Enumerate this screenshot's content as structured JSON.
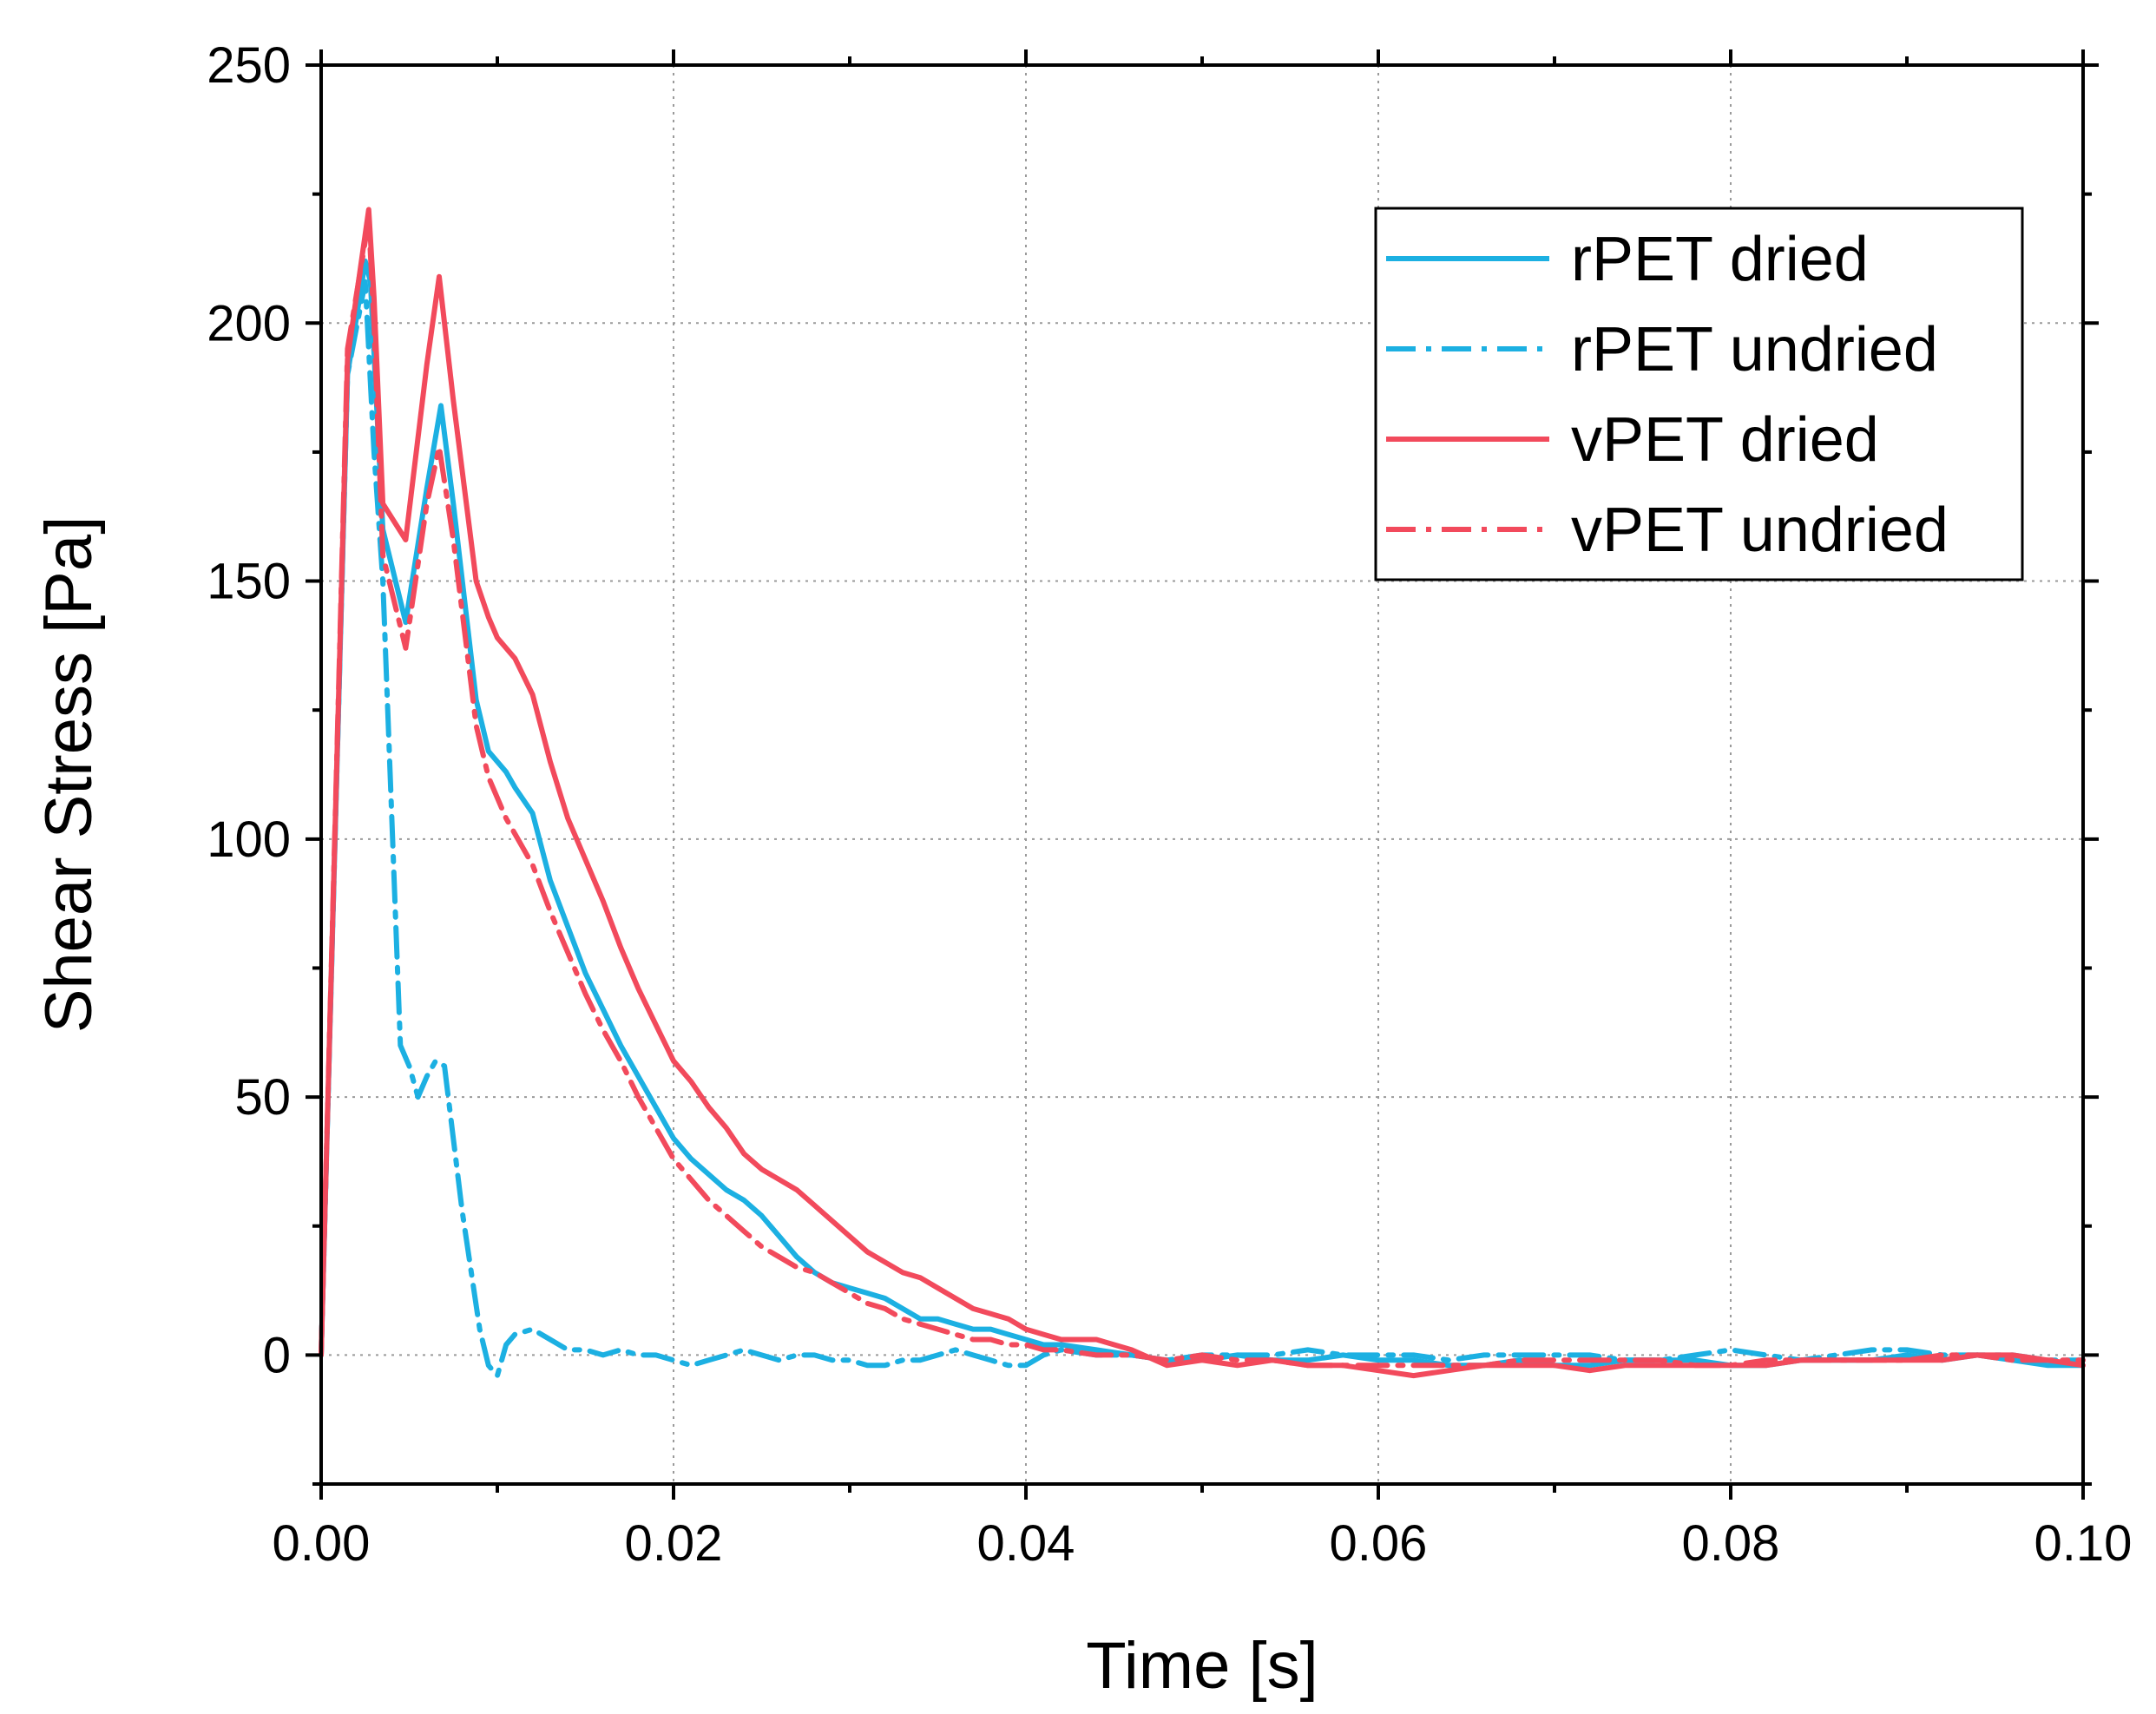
{
  "chart_data": {
    "type": "line",
    "title": "",
    "xlabel": "Time [s]",
    "ylabel": "Shear Stress [Pa]",
    "xlim": [
      0.0,
      0.1
    ],
    "ylim": [
      -25,
      250
    ],
    "xticks": [
      0.0,
      0.02,
      0.04,
      0.06,
      0.08,
      0.1
    ],
    "xtick_labels": [
      "0.00",
      "0.02",
      "0.04",
      "0.06",
      "0.08",
      "0.10"
    ],
    "yticks": [
      0,
      50,
      100,
      150,
      200,
      250
    ],
    "ytick_labels": [
      "0",
      "50",
      "100",
      "150",
      "200",
      "250"
    ],
    "grid": true,
    "legend_position": "top-right",
    "series": [
      {
        "name": "rPET dried",
        "color": "#1CB0E2",
        "style": "solid",
        "x": [
          0,
          0.0015,
          0.0025,
          0.0028,
          0.0035,
          0.0048,
          0.006,
          0.0068,
          0.0075,
          0.0088,
          0.0095,
          0.0105,
          0.011,
          0.012,
          0.013,
          0.014,
          0.015,
          0.016,
          0.017,
          0.018,
          0.019,
          0.02,
          0.021,
          0.022,
          0.023,
          0.024,
          0.025,
          0.026,
          0.027,
          0.028,
          0.029,
          0.03,
          0.031,
          0.032,
          0.033,
          0.034,
          0.035,
          0.036,
          0.037,
          0.038,
          0.039,
          0.04,
          0.041,
          0.042,
          0.044,
          0.046,
          0.048,
          0.05,
          0.052,
          0.054,
          0.056,
          0.058,
          0.06,
          0.062,
          0.064,
          0.066,
          0.068,
          0.07,
          0.072,
          0.074,
          0.076,
          0.078,
          0.08,
          0.082,
          0.084,
          0.086,
          0.088,
          0.09,
          0.092,
          0.094,
          0.096,
          0.098,
          0.1
        ],
        "y": [
          0,
          190,
          212,
          208,
          160,
          142,
          168,
          184,
          165,
          127,
          117,
          113,
          110,
          105,
          92,
          83,
          74,
          67,
          60,
          54,
          48,
          42,
          38,
          35,
          32,
          30,
          27,
          23,
          19,
          16,
          14,
          13,
          12,
          11,
          9,
          7,
          7,
          6,
          5,
          5,
          4,
          3,
          2,
          2,
          1,
          0,
          -1,
          -1,
          0,
          -1,
          -1,
          0,
          -1,
          -1,
          -2,
          -2,
          -1,
          -2,
          -2,
          -1,
          -1,
          -1,
          -2,
          -2,
          -1,
          -1,
          -1,
          0,
          -1,
          0,
          -1,
          -2,
          -2
        ]
      },
      {
        "name": "rPET undried",
        "color": "#1CB0E2",
        "style": "dashdot",
        "x": [
          0,
          0.0015,
          0.0025,
          0.003,
          0.0035,
          0.004,
          0.0045,
          0.005,
          0.0055,
          0.006,
          0.0065,
          0.007,
          0.008,
          0.009,
          0.0095,
          0.01,
          0.0105,
          0.011,
          0.012,
          0.013,
          0.014,
          0.015,
          0.016,
          0.017,
          0.018,
          0.019,
          0.02,
          0.021,
          0.022,
          0.023,
          0.024,
          0.025,
          0.026,
          0.027,
          0.028,
          0.029,
          0.03,
          0.031,
          0.032,
          0.033,
          0.034,
          0.035,
          0.036,
          0.037,
          0.038,
          0.039,
          0.04,
          0.041,
          0.042,
          0.044,
          0.046,
          0.048,
          0.05,
          0.052,
          0.054,
          0.056,
          0.058,
          0.06,
          0.062,
          0.064,
          0.066,
          0.068,
          0.07,
          0.072,
          0.074,
          0.076,
          0.078,
          0.08,
          0.082,
          0.084,
          0.086,
          0.088,
          0.09,
          0.092,
          0.094,
          0.096,
          0.098,
          0.1
        ],
        "y": [
          0,
          190,
          208,
          175,
          150,
          105,
          60,
          56,
          50,
          54,
          57,
          56,
          28,
          5,
          -2,
          -4,
          2,
          4,
          5,
          3,
          1,
          1,
          0,
          1,
          0,
          0,
          -1,
          -2,
          -1,
          0,
          1,
          0,
          -1,
          0,
          0,
          -1,
          -1,
          -2,
          -2,
          -1,
          -1,
          0,
          1,
          0,
          -1,
          -2,
          -2,
          0,
          1,
          0,
          0,
          -1,
          0,
          0,
          0,
          1,
          0,
          0,
          0,
          -1,
          0,
          0,
          0,
          0,
          -1,
          -1,
          0,
          1,
          0,
          -1,
          0,
          1,
          1,
          0,
          0,
          0,
          -1,
          -1
        ]
      },
      {
        "name": "vPET dried",
        "color": "#F24A5C",
        "style": "solid",
        "x": [
          0,
          0.0015,
          0.0027,
          0.003,
          0.0035,
          0.0048,
          0.006,
          0.0067,
          0.0075,
          0.0088,
          0.0095,
          0.01,
          0.011,
          0.012,
          0.013,
          0.014,
          0.015,
          0.016,
          0.017,
          0.018,
          0.019,
          0.02,
          0.021,
          0.022,
          0.023,
          0.024,
          0.025,
          0.026,
          0.027,
          0.028,
          0.029,
          0.03,
          0.031,
          0.032,
          0.033,
          0.034,
          0.035,
          0.036,
          0.037,
          0.038,
          0.039,
          0.04,
          0.041,
          0.042,
          0.044,
          0.046,
          0.048,
          0.05,
          0.052,
          0.054,
          0.056,
          0.058,
          0.06,
          0.062,
          0.064,
          0.066,
          0.068,
          0.07,
          0.072,
          0.074,
          0.076,
          0.078,
          0.08,
          0.082,
          0.084,
          0.086,
          0.088,
          0.09,
          0.092,
          0.094,
          0.096,
          0.098,
          0.1
        ],
        "y": [
          0,
          193,
          222,
          205,
          165,
          158,
          192,
          209,
          185,
          150,
          143,
          139,
          135,
          128,
          115,
          104,
          96,
          88,
          79,
          71,
          64,
          57,
          53,
          48,
          44,
          39,
          36,
          34,
          32,
          29,
          26,
          23,
          20,
          18,
          16,
          15,
          13,
          11,
          9,
          8,
          7,
          5,
          4,
          3,
          3,
          1,
          -2,
          -1,
          -2,
          -1,
          -2,
          -2,
          -3,
          -4,
          -3,
          -2,
          -2,
          -2,
          -3,
          -2,
          -2,
          -2,
          -2,
          -2,
          -1,
          -1,
          -1,
          -1,
          -1,
          0,
          0,
          -1,
          -2
        ]
      },
      {
        "name": "vPET undried",
        "color": "#F24A5C",
        "style": "dashdot",
        "x": [
          0,
          0.0015,
          0.0027,
          0.003,
          0.0035,
          0.0048,
          0.006,
          0.0067,
          0.0075,
          0.0088,
          0.0095,
          0.0105,
          0.011,
          0.012,
          0.013,
          0.014,
          0.015,
          0.016,
          0.017,
          0.018,
          0.019,
          0.02,
          0.021,
          0.022,
          0.023,
          0.024,
          0.025,
          0.026,
          0.027,
          0.028,
          0.029,
          0.03,
          0.031,
          0.032,
          0.033,
          0.034,
          0.035,
          0.036,
          0.037,
          0.038,
          0.039,
          0.04,
          0.041,
          0.042,
          0.044,
          0.046,
          0.048,
          0.05,
          0.052,
          0.054,
          0.056,
          0.058,
          0.06,
          0.062,
          0.064,
          0.066,
          0.068,
          0.07,
          0.072,
          0.074,
          0.076,
          0.078,
          0.08,
          0.082,
          0.084,
          0.086,
          0.088,
          0.09,
          0.092,
          0.094,
          0.096,
          0.098,
          0.1
        ],
        "y": [
          0,
          195,
          220,
          200,
          155,
          137,
          165,
          176,
          158,
          122,
          112,
          104,
          101,
          95,
          86,
          78,
          70,
          63,
          57,
          50,
          44,
          38,
          34,
          30,
          27,
          24,
          21,
          19,
          17,
          16,
          14,
          12,
          10,
          9,
          7,
          6,
          5,
          4,
          3,
          3,
          2,
          2,
          1,
          1,
          0,
          0,
          -1,
          0,
          -1,
          -1,
          -2,
          -2,
          -2,
          -2,
          -2,
          -2,
          -1,
          -1,
          -1,
          -1,
          -1,
          -2,
          -2,
          -1,
          -1,
          -1,
          -1,
          -1,
          0,
          0,
          -1,
          -1,
          -1
        ]
      }
    ]
  }
}
